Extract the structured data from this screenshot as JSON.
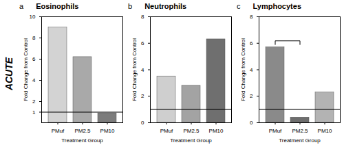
{
  "row_label": "ACUTE",
  "chart_data": [
    {
      "type": "bar",
      "panel": "a",
      "title": "Eosinophils",
      "x_label": "Treatment Group",
      "y_label": "Fold Change from Control",
      "categories": [
        "PMuf",
        "PM2.5",
        "PM10"
      ],
      "values": [
        9,
        6.2,
        0.9
      ],
      "colors": [
        "#d3d3d3",
        "#a9a9a9",
        "#7c7c7c"
      ],
      "ylim": [
        0,
        10
      ],
      "yticks": [
        1,
        2,
        4,
        6,
        8,
        10
      ],
      "reference_line": 1
    },
    {
      "type": "bar",
      "panel": "b",
      "title": "Neutrophils",
      "x_label": "Treatment Group",
      "y_label": "Fold Change from Control",
      "categories": [
        "PMuf",
        "PM2.5",
        "PM10"
      ],
      "values": [
        3.5,
        2.8,
        6.3
      ],
      "colors": [
        "#cfcfcf",
        "#a3a3a3",
        "#6f6f6f"
      ],
      "ylim": [
        0,
        8
      ],
      "yticks": [
        0,
        2,
        4,
        6,
        8
      ],
      "reference_line": 1
    },
    {
      "type": "bar",
      "panel": "c",
      "title": "Lymphocytes",
      "x_label": "Treatment Group",
      "y_label": "Fold Change from Control",
      "categories": [
        "PMuf",
        "PM2.5",
        "PM10"
      ],
      "values": [
        5.7,
        0.4,
        2.3
      ],
      "colors": [
        "#8a8a8a",
        "#6e6e6e",
        "#b3b3b3"
      ],
      "ylim": [
        0,
        8
      ],
      "yticks": [
        0,
        2,
        4,
        6,
        8
      ],
      "reference_line": 1,
      "significance_bracket": [
        "PMuf",
        "PM2.5"
      ]
    }
  ]
}
